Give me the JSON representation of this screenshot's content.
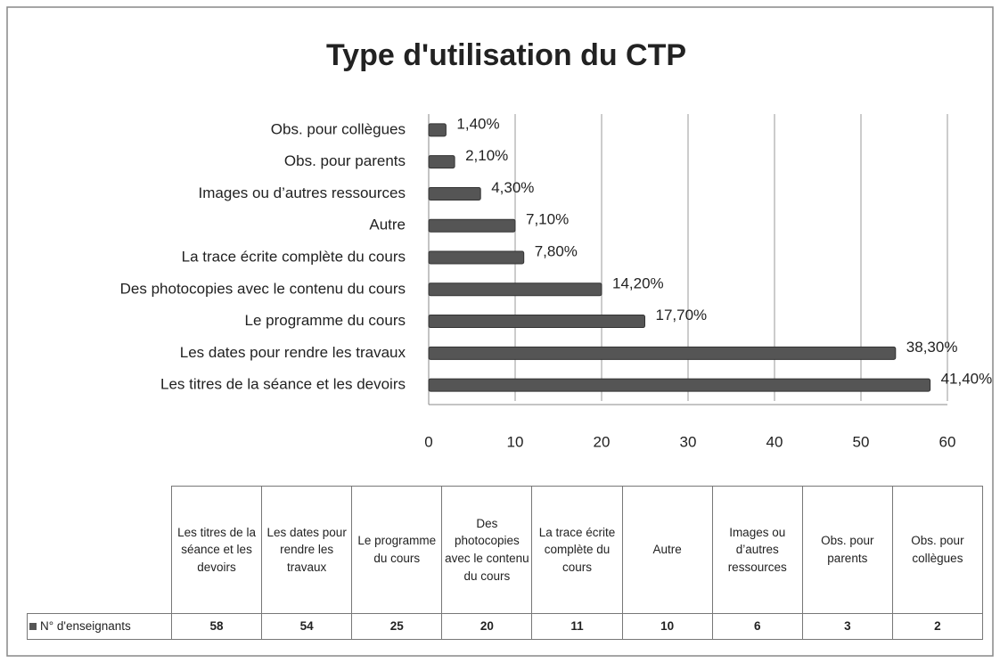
{
  "chart_data": {
    "type": "hbar",
    "title": "Type d'utilisation du CTP",
    "categories": [
      "Les titres de la séance et les devoirs",
      "Les  dates pour rendre les travaux",
      "Le programme du cours",
      "Des photocopies avec le contenu du cours",
      "La trace écrite complète du cours",
      "Autre",
      "Images ou d’autres ressources",
      "Obs. pour  parents",
      "Obs. pour collègues"
    ],
    "series": [
      {
        "name": "N° d'enseignants",
        "color": "#555555",
        "values": [
          58,
          54,
          25,
          20,
          11,
          10,
          6,
          3,
          2
        ],
        "percentages": [
          41.4,
          38.3,
          17.7,
          14.2,
          7.8,
          7.1,
          4.3,
          2.1,
          1.4
        ],
        "percentage_labels": [
          "41,40%",
          "38,30%",
          "17,70%",
          "14,20%",
          "7,80%",
          "7,10%",
          "4,30%",
          "2,10%",
          "1,40%"
        ]
      }
    ],
    "xlim": [
      0,
      60
    ],
    "xticks": [
      0,
      10,
      20,
      30,
      40,
      50,
      60
    ],
    "grid": true,
    "data_table": true
  }
}
